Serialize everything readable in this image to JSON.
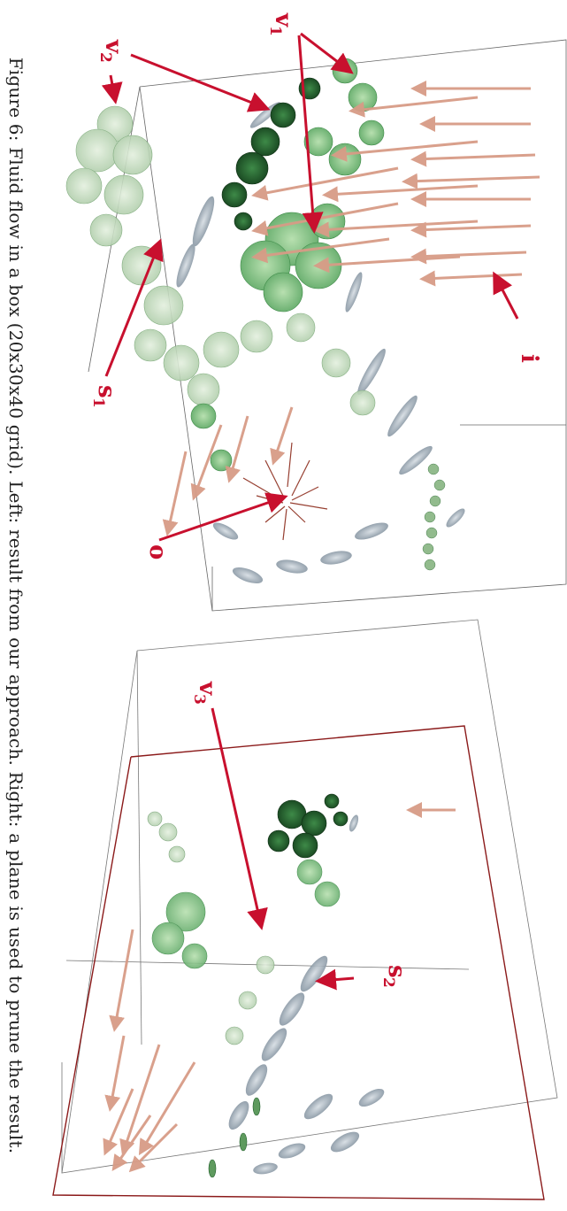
{
  "caption": "Figure 6: Fluid flow in a box (20x30x40 grid). Left: result from our approach. Right: a plane is used to prune the result.",
  "labels": {
    "i": "i",
    "o": "o",
    "v1": "v",
    "v1_sub": "1",
    "v2": "v",
    "v2_sub": "2",
    "v3": "v",
    "v3_sub": "3",
    "s1": "s",
    "s1_sub": "1",
    "s2": "s",
    "s2_sub": "2"
  },
  "colors": {
    "annotation": "#c8102e",
    "arrow_glyph": "#d9a08a",
    "vortex_dark": "#1f5c2a",
    "vortex_mid": "#4fa35a",
    "vortex_light": "#9cc79a",
    "sheet": "#8a9aaa",
    "plane_edge": "#8b1a1a",
    "box_edge": "#555555"
  }
}
